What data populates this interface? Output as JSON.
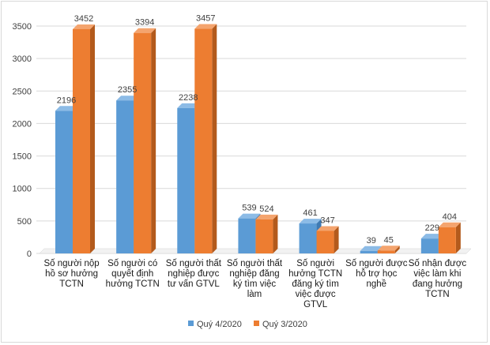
{
  "chart_data": {
    "type": "bar",
    "style": "3d-clustered-column",
    "title": "",
    "xlabel": "",
    "ylabel": "",
    "ylim": [
      0,
      3500
    ],
    "ytick_step": 500,
    "grid": true,
    "legend_position": "bottom",
    "categories": [
      [
        "Số người nộp",
        "hồ sơ hưởng",
        "TCTN"
      ],
      [
        "Số người có",
        "quyết định",
        "hưởng TCTN"
      ],
      [
        "Số người thất",
        "nghiệp được",
        "tư vấn GTVL"
      ],
      [
        "Số người thất",
        "nghiệp đăng",
        "ký tìm việc",
        "làm"
      ],
      [
        "Số người",
        "hưởng TCTN",
        "đăng ký tìm",
        "việc được",
        "GTVL"
      ],
      [
        "Số người được",
        "hỗ trợ học",
        "nghề"
      ],
      [
        "Số nhận được",
        "việc làm khi",
        "đang hưởng",
        "TCTN"
      ]
    ],
    "series": [
      {
        "name": "Quý 4/2020",
        "color": "#5b9bd5",
        "side_color": "#3f7ab3",
        "top_color": "#8cbbe6",
        "values": [
          2196,
          2355,
          2238,
          539,
          461,
          39,
          229
        ]
      },
      {
        "name": "Quý 3/2020",
        "color": "#ed7d31",
        "side_color": "#b35a1c",
        "top_color": "#f4a46e",
        "values": [
          3452,
          3394,
          3457,
          524,
          347,
          45,
          404
        ]
      }
    ]
  }
}
